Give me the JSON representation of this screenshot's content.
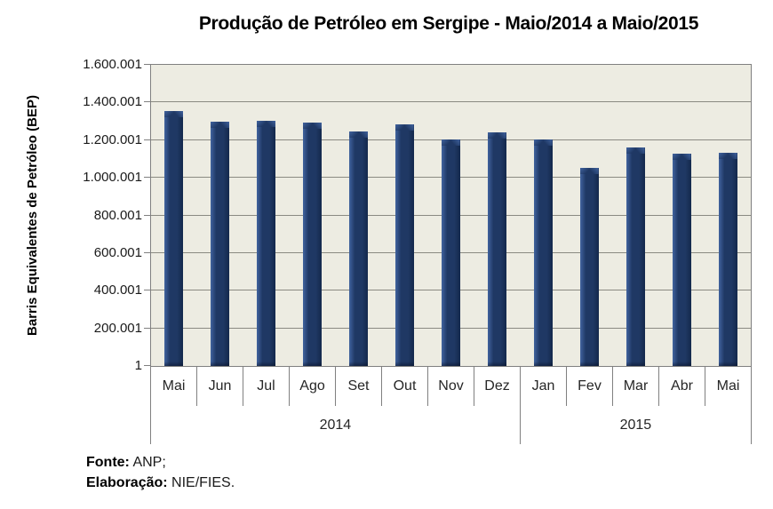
{
  "chart_data": {
    "type": "bar",
    "title": "Produção de Petróleo em Sergipe - Maio/2014 a Maio/2015",
    "ylabel": "Barris Equivalentes de Petróleo (BEP)",
    "xlabel": "",
    "categories": [
      "Mai",
      "Jun",
      "Jul",
      "Ago",
      "Set",
      "Out",
      "Nov",
      "Dez",
      "Jan",
      "Fev",
      "Mar",
      "Abr",
      "Mai"
    ],
    "values": [
      1355000,
      1300000,
      1302000,
      1292000,
      1248000,
      1283000,
      1205000,
      1242000,
      1205000,
      1052000,
      1162000,
      1130000,
      1135000
    ],
    "year_groups": [
      {
        "label": "2014",
        "count": 8
      },
      {
        "label": "2015",
        "count": 5
      }
    ],
    "y_ticks": [
      "1.600.001",
      "1.400.001",
      "1.200.001",
      "1.000.001",
      "800.001",
      "600.001",
      "400.001",
      "200.001",
      "1"
    ],
    "ylim": [
      1,
      1600001
    ],
    "grid": true,
    "legend": "none",
    "colors": {
      "bar": "#1F3864",
      "bar_highlight": "#41639F",
      "bar_shadow": "#14294C",
      "plot_bg": "#EDECE2",
      "gridline": "#8A8A82",
      "axis": "#808080",
      "text": "#262626"
    }
  },
  "footer": {
    "fonte_label": "Fonte:",
    "fonte_value": " ANP;",
    "elaboracao_label": "Elaboração:",
    "elaboracao_value": " NIE/FIES."
  }
}
